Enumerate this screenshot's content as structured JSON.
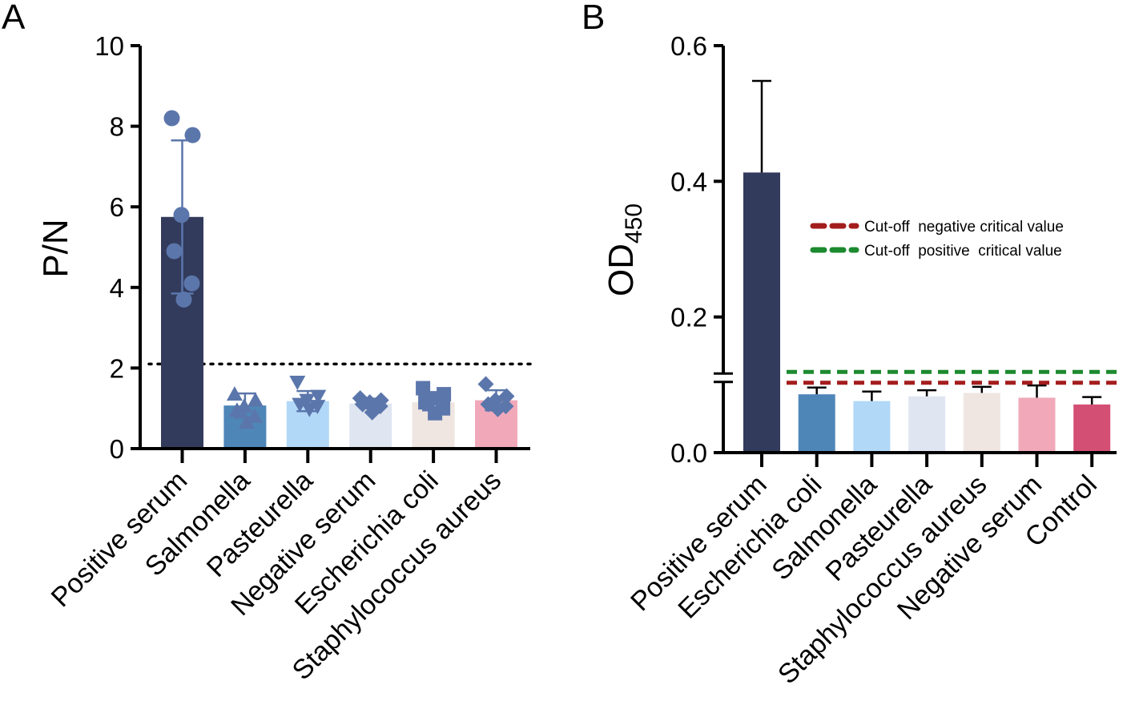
{
  "chart_data": [
    {
      "type": "bar",
      "panel_label": "A",
      "ylabel": "P/N",
      "ylim": [
        0,
        10
      ],
      "yticks": [
        "0",
        "2",
        "4",
        "6",
        "8",
        "10"
      ],
      "threshold": 2.1,
      "categories": [
        "Positive serum",
        "Salmonella",
        "Pasteurella",
        "Negative serum",
        "Escherichia coli",
        "Staphylococcus aureus"
      ],
      "values": [
        5.75,
        1.07,
        1.18,
        1.12,
        1.15,
        1.2
      ],
      "errors": [
        1.9,
        0.3,
        0.25,
        0.12,
        0.2,
        0.25
      ],
      "points": [
        [
          8.2,
          7.78,
          5.8,
          4.9,
          4.1,
          3.7
        ],
        [
          1.35,
          1.2,
          1.05,
          0.95,
          0.8,
          0.65
        ],
        [
          1.65,
          1.3,
          1.2,
          1.1,
          1.05,
          0.98
        ],
        [
          1.25,
          1.2,
          1.15,
          1.1,
          1.05,
          0.9
        ],
        [
          1.5,
          1.35,
          1.25,
          1.15,
          1.0,
          0.88
        ],
        [
          1.6,
          1.3,
          1.2,
          1.1,
          1.05,
          0.98
        ]
      ],
      "marker_shapes": [
        "circle",
        "triangle-up",
        "triangle-down",
        "diamond",
        "square",
        "diamond"
      ],
      "colors": [
        "#333b5c",
        "#4f86b8",
        "#b2d8f8",
        "#dfe5f1",
        "#efe5e1",
        "#f1a9ba"
      ],
      "marker_color": "#5b76ab"
    },
    {
      "type": "bar",
      "panel_label": "B",
      "ylabel_main": "OD",
      "ylabel_sub": "450",
      "ylim": [
        0,
        0.6
      ],
      "yticks": [
        "0.0",
        "0.2",
        "0.4",
        "0.6"
      ],
      "categories": [
        "Positive serum",
        "Escherichia coli",
        "Salmonella",
        "Pasteurella",
        "Staphylococcus aureus",
        "Negative serum",
        "Control"
      ],
      "values": [
        0.413,
        0.086,
        0.076,
        0.083,
        0.088,
        0.081,
        0.071
      ],
      "errors": [
        0.135,
        0.01,
        0.014,
        0.009,
        0.009,
        0.018,
        0.011
      ],
      "colors": [
        "#333b5c",
        "#4f86b8",
        "#b2d8f8",
        "#dfe5f1",
        "#efe5e1",
        "#f1a9ba",
        "#d34f74"
      ],
      "cutoffs": [
        {
          "label": "Cut-off  negative critical value",
          "value": 0.103,
          "color": "#a41d1d"
        },
        {
          "label": "Cut-off  positive  critical value",
          "value": 0.119,
          "color": "#1c8a2f"
        }
      ]
    }
  ]
}
